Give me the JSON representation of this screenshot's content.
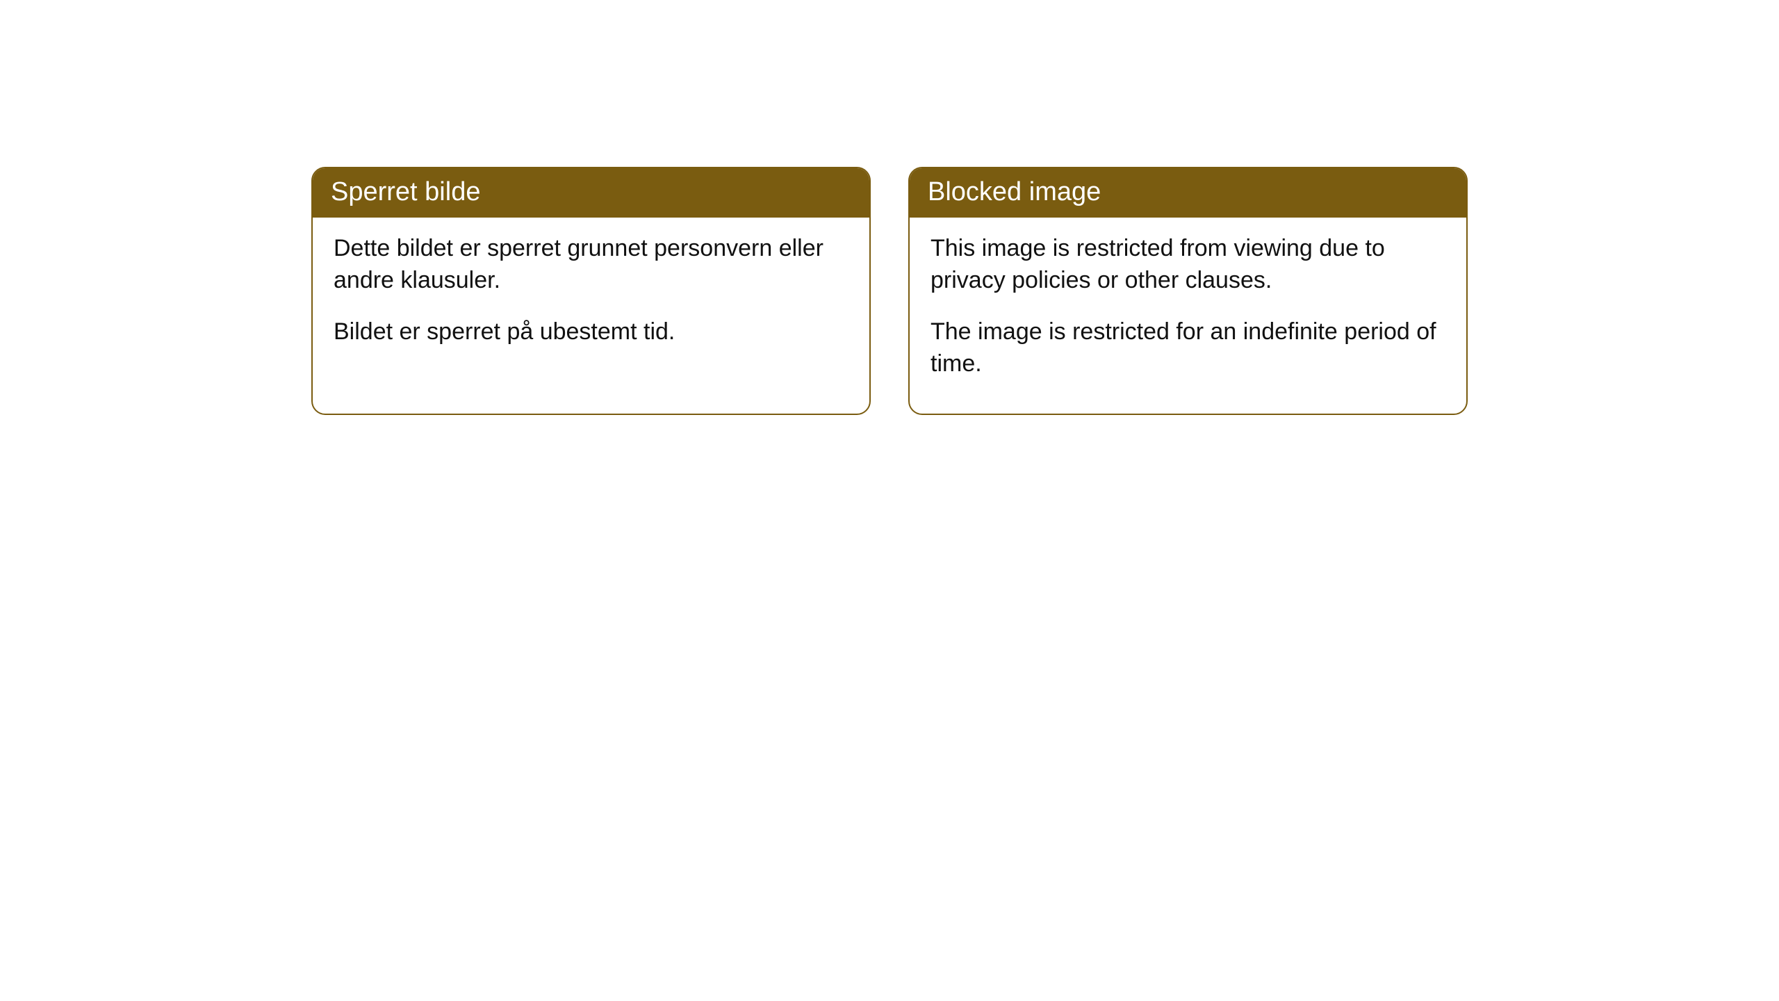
{
  "cards": [
    {
      "title": "Sperret bilde",
      "paragraph1": "Dette bildet er sperret grunnet personvern eller andre klausuler.",
      "paragraph2": "Bildet er sperret på ubestemt tid."
    },
    {
      "title": "Blocked image",
      "paragraph1": "This image is restricted from viewing due to privacy policies or other clauses.",
      "paragraph2": "The image is restricted for an indefinite period of time."
    }
  ],
  "styling": {
    "header_background": "#7a5c10",
    "header_text_color": "#ffffff",
    "body_text_color": "#111111",
    "card_border_color": "#7a5c10",
    "card_background": "#ffffff",
    "page_background": "#ffffff",
    "border_radius": 20,
    "header_font_size": 38,
    "body_font_size": 34
  }
}
